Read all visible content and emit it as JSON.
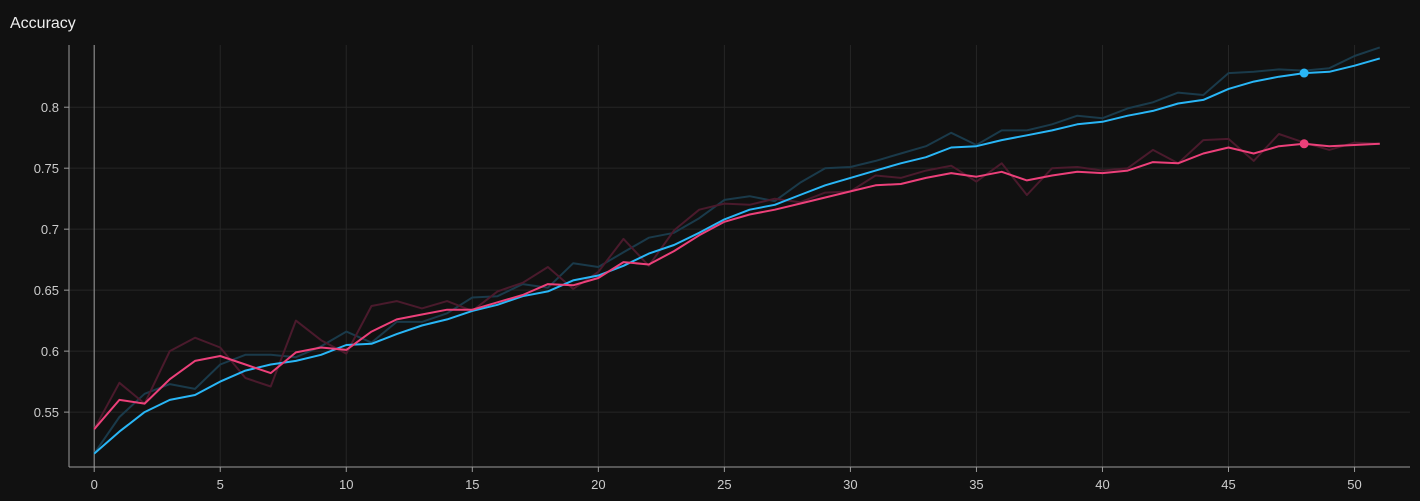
{
  "chart_data": {
    "type": "line",
    "title": "Accuracy",
    "xlabel": "",
    "ylabel": "",
    "xlim": [
      -1,
      52.2
    ],
    "ylim": [
      0.505,
      0.851
    ],
    "x_ticks": [
      0,
      5,
      10,
      15,
      20,
      25,
      30,
      35,
      40,
      45,
      50
    ],
    "y_ticks": [
      0.55,
      0.6,
      0.65,
      0.7,
      0.75,
      0.8
    ],
    "grid": true,
    "legend": "none",
    "series": [
      {
        "color": "#29b6f6",
        "raw_color": "#1a3a4a",
        "end_marker_x": 48,
        "x": [
          0,
          1,
          2,
          3,
          4,
          5,
          6,
          7,
          8,
          9,
          10,
          11,
          12,
          13,
          14,
          15,
          16,
          17,
          18,
          19,
          20,
          21,
          22,
          23,
          24,
          25,
          26,
          27,
          28,
          29,
          30,
          31,
          32,
          33,
          34,
          35,
          36,
          37,
          38,
          39,
          40,
          41,
          42,
          43,
          44,
          45,
          46,
          47,
          48,
          49,
          50,
          51
        ],
        "raw": [
          0.516,
          0.546,
          0.565,
          0.573,
          0.569,
          0.589,
          0.597,
          0.597,
          0.595,
          0.604,
          0.616,
          0.607,
          0.624,
          0.624,
          0.631,
          0.644,
          0.645,
          0.655,
          0.652,
          0.672,
          0.669,
          0.681,
          0.693,
          0.697,
          0.709,
          0.724,
          0.727,
          0.723,
          0.738,
          0.75,
          0.751,
          0.756,
          0.762,
          0.768,
          0.779,
          0.769,
          0.781,
          0.781,
          0.786,
          0.793,
          0.791,
          0.799,
          0.804,
          0.812,
          0.81,
          0.828,
          0.829,
          0.831,
          0.83,
          0.832,
          0.842,
          0.849
        ],
        "smoothed": [
          0.516,
          0.534,
          0.55,
          0.56,
          0.564,
          0.575,
          0.584,
          0.589,
          0.592,
          0.597,
          0.605,
          0.606,
          0.614,
          0.621,
          0.626,
          0.633,
          0.638,
          0.645,
          0.649,
          0.658,
          0.662,
          0.67,
          0.68,
          0.687,
          0.697,
          0.708,
          0.716,
          0.72,
          0.728,
          0.736,
          0.742,
          0.748,
          0.754,
          0.759,
          0.767,
          0.768,
          0.773,
          0.777,
          0.781,
          0.786,
          0.788,
          0.793,
          0.797,
          0.803,
          0.806,
          0.815,
          0.821,
          0.825,
          0.828,
          0.829,
          0.834,
          0.84
        ]
      },
      {
        "color": "#ec407a",
        "raw_color": "#4a1a2c",
        "end_marker_x": 48,
        "x": [
          0,
          1,
          2,
          3,
          4,
          5,
          6,
          7,
          8,
          9,
          10,
          11,
          12,
          13,
          14,
          15,
          16,
          17,
          18,
          19,
          20,
          21,
          22,
          23,
          24,
          25,
          26,
          27,
          28,
          29,
          30,
          31,
          32,
          33,
          34,
          35,
          36,
          37,
          38,
          39,
          40,
          41,
          42,
          43,
          44,
          45,
          46,
          47,
          48,
          49,
          50,
          51
        ],
        "raw": [
          0.536,
          0.574,
          0.557,
          0.6,
          0.611,
          0.603,
          0.578,
          0.571,
          0.625,
          0.609,
          0.598,
          0.637,
          0.641,
          0.635,
          0.641,
          0.633,
          0.649,
          0.656,
          0.669,
          0.651,
          0.665,
          0.692,
          0.67,
          0.699,
          0.716,
          0.721,
          0.72,
          0.725,
          0.722,
          0.73,
          0.731,
          0.744,
          0.742,
          0.748,
          0.752,
          0.739,
          0.754,
          0.728,
          0.75,
          0.751,
          0.748,
          0.75,
          0.765,
          0.754,
          0.773,
          0.774,
          0.756,
          0.778,
          0.771,
          0.765,
          0.771,
          0.77
        ],
        "smoothed": [
          0.536,
          0.56,
          0.557,
          0.577,
          0.592,
          0.596,
          0.589,
          0.582,
          0.599,
          0.603,
          0.601,
          0.616,
          0.626,
          0.63,
          0.634,
          0.634,
          0.64,
          0.646,
          0.655,
          0.654,
          0.66,
          0.673,
          0.671,
          0.682,
          0.695,
          0.706,
          0.712,
          0.716,
          0.721,
          0.726,
          0.731,
          0.736,
          0.737,
          0.742,
          0.746,
          0.743,
          0.747,
          0.74,
          0.744,
          0.747,
          0.746,
          0.748,
          0.755,
          0.754,
          0.762,
          0.767,
          0.762,
          0.768,
          0.77,
          0.768,
          0.769,
          0.77
        ]
      }
    ]
  }
}
